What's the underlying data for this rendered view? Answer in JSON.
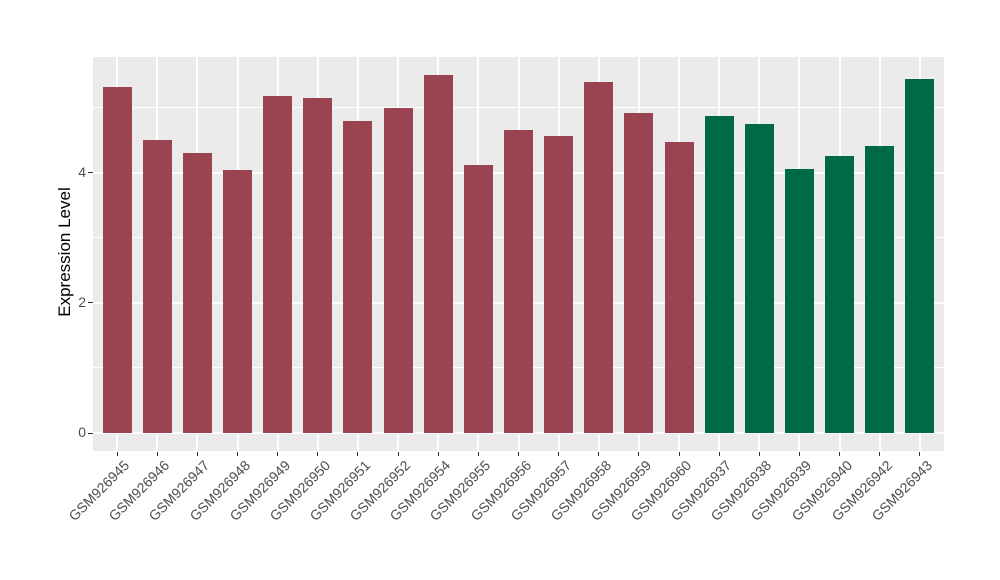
{
  "chart_data": {
    "type": "bar",
    "title": "",
    "xlabel": "",
    "ylabel": "Expression Level",
    "categories": [
      "GSM926945",
      "GSM926946",
      "GSM926947",
      "GSM926948",
      "GSM926949",
      "GSM926950",
      "GSM926951",
      "GSM926952",
      "GSM926954",
      "GSM926955",
      "GSM926956",
      "GSM926957",
      "GSM926958",
      "GSM926959",
      "GSM926960",
      "GSM926937",
      "GSM926938",
      "GSM926939",
      "GSM926940",
      "GSM926942",
      "GSM926943"
    ],
    "values": [
      5.31,
      4.5,
      4.3,
      4.04,
      5.17,
      5.14,
      4.79,
      4.99,
      5.49,
      4.11,
      4.65,
      4.56,
      5.39,
      4.91,
      4.47,
      4.87,
      4.74,
      4.05,
      4.26,
      4.4,
      5.44
    ],
    "groups": [
      "group-red",
      "group-red",
      "group-red",
      "group-red",
      "group-red",
      "group-red",
      "group-red",
      "group-red",
      "group-red",
      "group-red",
      "group-red",
      "group-red",
      "group-red",
      "group-red",
      "group-red",
      "group-green",
      "group-green",
      "group-green",
      "group-green",
      "group-green",
      "group-green"
    ],
    "group_colors": {
      "group-red": "#9B4451",
      "group-green": "#006948"
    },
    "y_ticks": [
      0,
      2,
      4
    ],
    "y_minor_gridlines": [
      1,
      3,
      5
    ],
    "ylim": [
      -0.28,
      5.77
    ],
    "x_tick_angle": 45,
    "grid": true,
    "legend": "none",
    "panel_background": "#EBEBEB",
    "gridline_color": "#FFFFFF",
    "axis_text_color": "#4D4D4D",
    "axis_title_color": "#000000"
  }
}
